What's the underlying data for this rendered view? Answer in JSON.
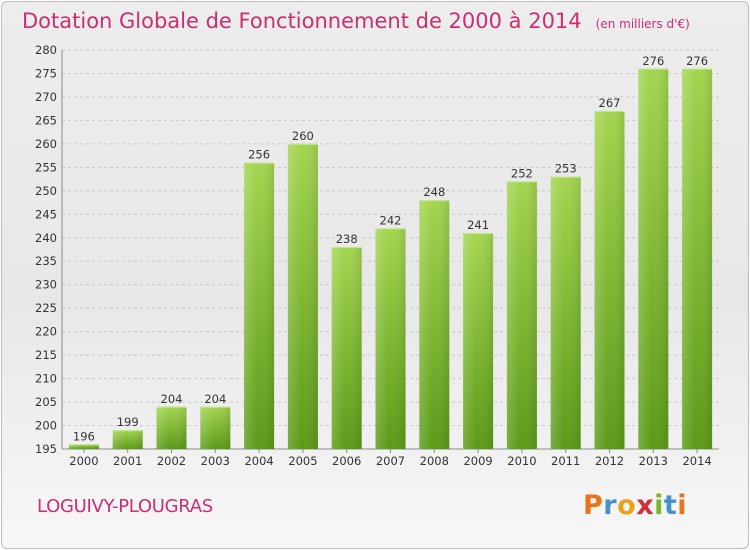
{
  "header": {
    "title": "Dotation Globale de Fonctionnement de 2000 à 2014",
    "subtitle": "(en milliers d'€)"
  },
  "footer": {
    "commune": "LOGUIVY-PLOUGRAS",
    "brand": "Proxiti"
  },
  "colors": {
    "title": "#cc2e72",
    "bar_light": "#9fd14a",
    "bar_dark": "#5f9d1a",
    "grid": "#c8c8c8"
  },
  "chart_data": {
    "type": "bar",
    "title": "Dotation Globale de Fonctionnement de 2000 à 2014",
    "subtitle": "(en milliers d'€)",
    "categories": [
      "2000",
      "2001",
      "2002",
      "2003",
      "2004",
      "2005",
      "2006",
      "2007",
      "2008",
      "2009",
      "2010",
      "2011",
      "2012",
      "2013",
      "2014"
    ],
    "values": [
      196,
      199,
      204,
      204,
      256,
      260,
      238,
      242,
      248,
      241,
      252,
      253,
      267,
      276,
      276
    ],
    "ylim": [
      195,
      280
    ],
    "yticks": [
      195,
      200,
      205,
      210,
      215,
      220,
      225,
      230,
      235,
      240,
      245,
      250,
      255,
      260,
      265,
      270,
      275,
      280
    ],
    "grid": true,
    "data_labels": true,
    "xlabel": "",
    "ylabel": ""
  }
}
